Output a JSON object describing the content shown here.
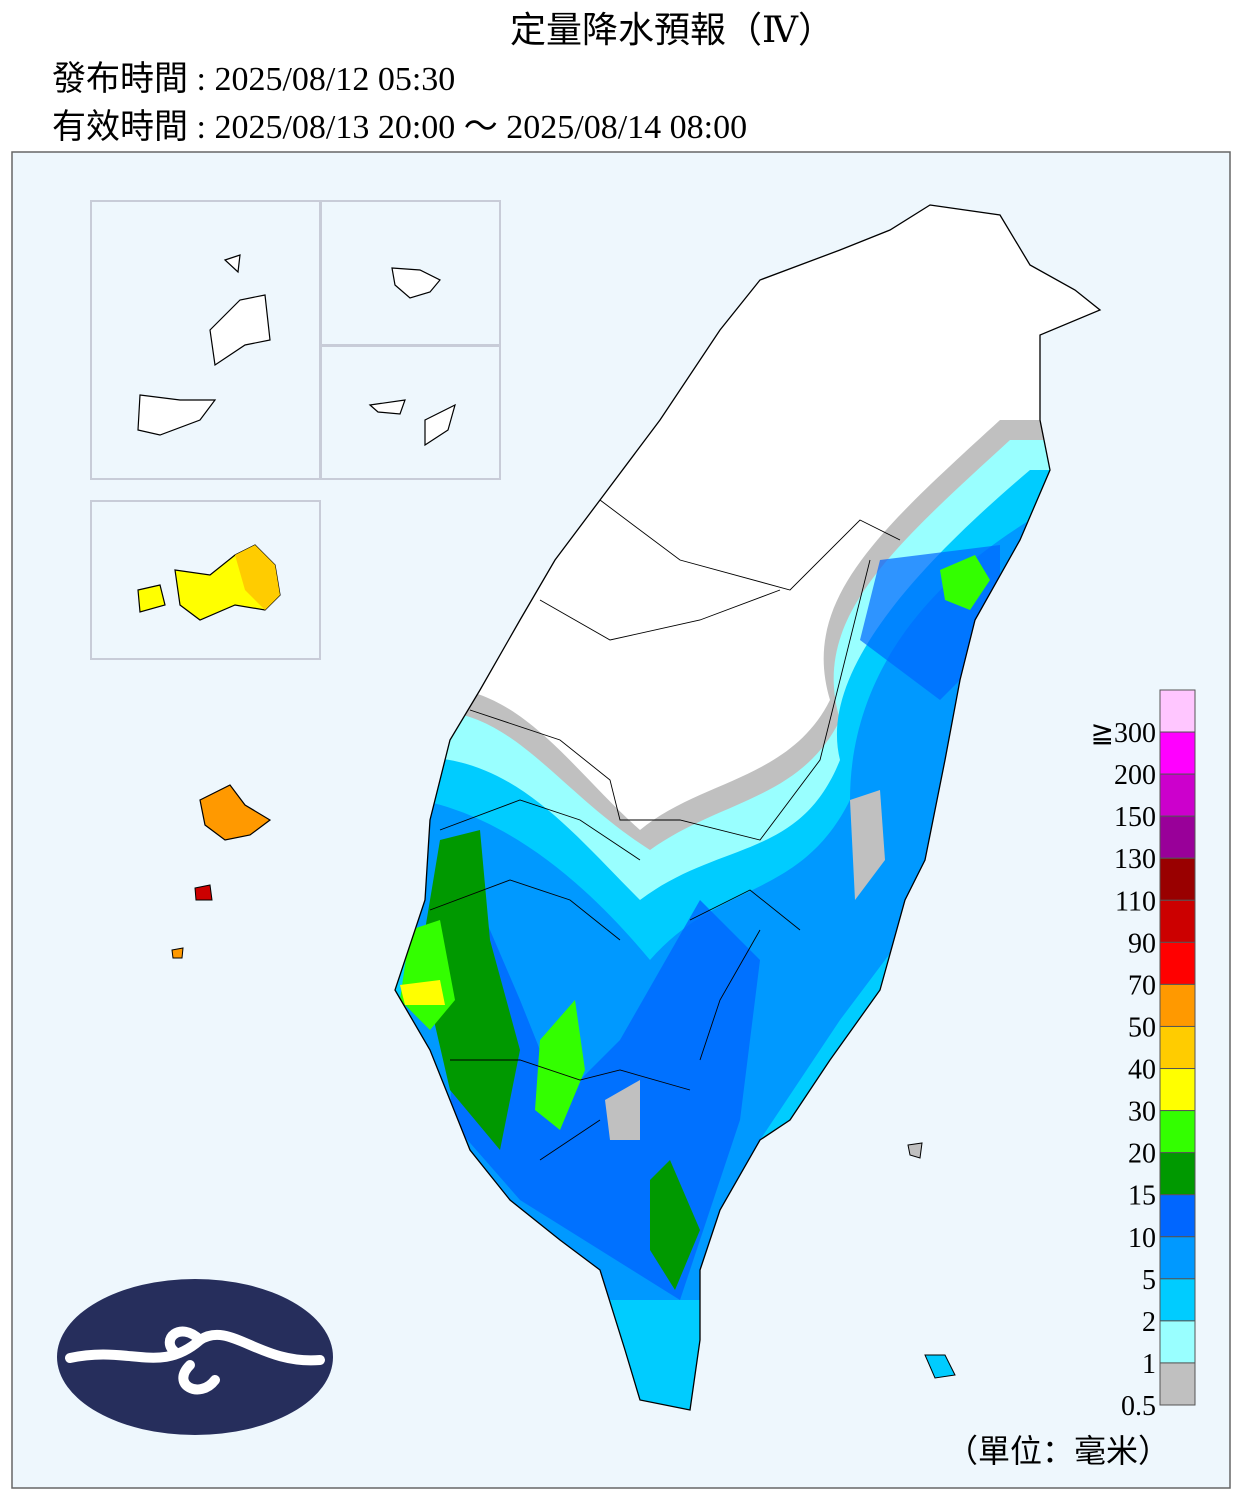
{
  "header": {
    "title": "定量降水預報（Ⅳ）",
    "issued": "發布時間 : 2025/08/12 05:30",
    "valid": "有效時間 : 2025/08/13 20:00 ～ 2025/08/14 08:00"
  },
  "legend": {
    "levels": [
      {
        "label": "≧300",
        "color": "#ffc6ff"
      },
      {
        "label": "200",
        "color": "#ff00ff"
      },
      {
        "label": "150",
        "color": "#cc00cc"
      },
      {
        "label": "130",
        "color": "#990099"
      },
      {
        "label": "110",
        "color": "#990000"
      },
      {
        "label": "90",
        "color": "#cc0000"
      },
      {
        "label": "70",
        "color": "#ff0000"
      },
      {
        "label": "50",
        "color": "#ff9900"
      },
      {
        "label": "40",
        "color": "#ffcc00"
      },
      {
        "label": "30",
        "color": "#ffff00"
      },
      {
        "label": "20",
        "color": "#33ff00"
      },
      {
        "label": "15",
        "color": "#009900"
      },
      {
        "label": "10",
        "color": "#0066ff"
      },
      {
        "label": "5",
        "color": "#0099ff"
      },
      {
        "label": "2",
        "color": "#00ccff"
      },
      {
        "label": "1",
        "color": "#99ffff"
      },
      {
        "label": "0.5",
        "color": "#c0c0c0"
      }
    ],
    "unit": "（單位：毫米）"
  }
}
